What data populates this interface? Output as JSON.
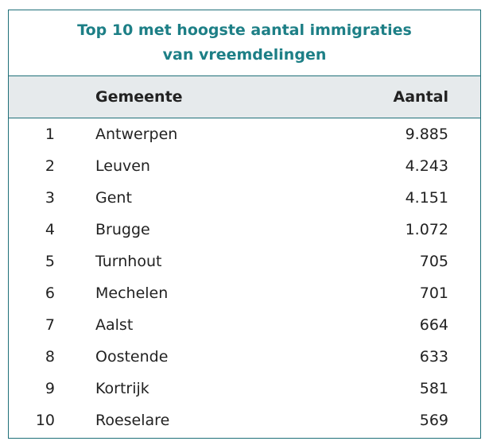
{
  "title": {
    "line1": "Top 10 met hoogste aantal immigraties",
    "line2": "van vreemdelingen"
  },
  "columns": {
    "rank": "",
    "gemeente": "Gemeente",
    "aantal": "Aantal"
  },
  "rows": [
    {
      "rank": "1",
      "gemeente": "Antwerpen",
      "aantal": "9.885"
    },
    {
      "rank": "2",
      "gemeente": "Leuven",
      "aantal": "4.243"
    },
    {
      "rank": "3",
      "gemeente": "Gent",
      "aantal": "4.151"
    },
    {
      "rank": "4",
      "gemeente": "Brugge",
      "aantal": "1.072"
    },
    {
      "rank": "5",
      "gemeente": "Turnhout",
      "aantal": "705"
    },
    {
      "rank": "6",
      "gemeente": "Mechelen",
      "aantal": "701"
    },
    {
      "rank": "7",
      "gemeente": "Aalst",
      "aantal": "664"
    },
    {
      "rank": "8",
      "gemeente": "Oostende",
      "aantal": "633"
    },
    {
      "rank": "9",
      "gemeente": "Kortrijk",
      "aantal": "581"
    },
    {
      "rank": "10",
      "gemeente": "Roeselare",
      "aantal": "569"
    }
  ],
  "colors": {
    "accent": "#1d7f86",
    "header_bg": "#e6eaec"
  }
}
